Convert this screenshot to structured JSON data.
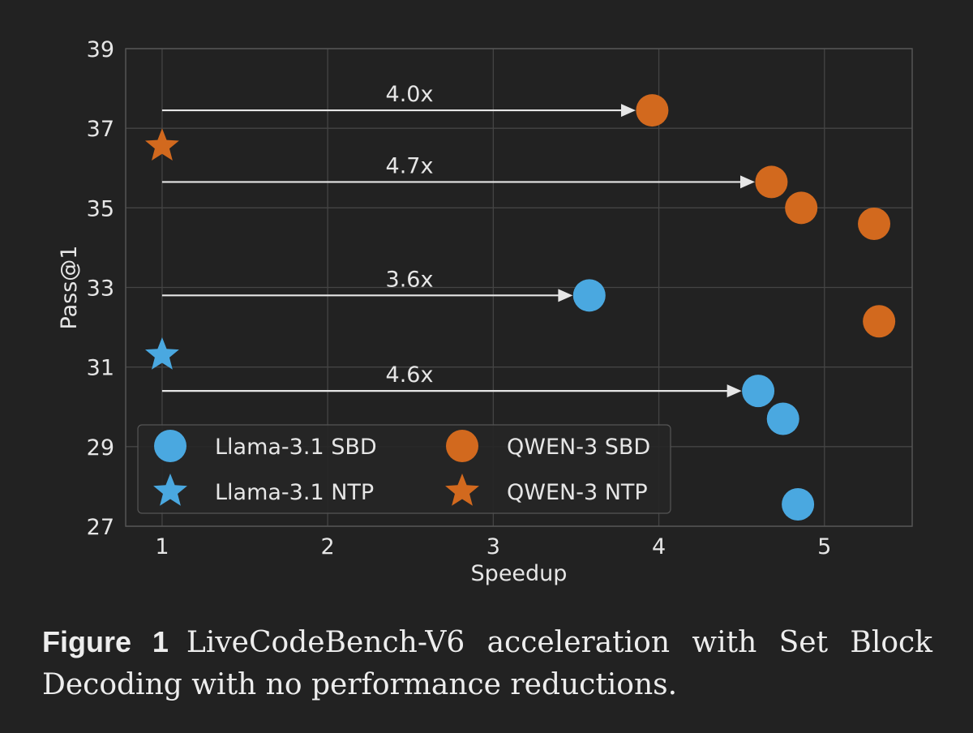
{
  "chart_data": {
    "type": "scatter",
    "xlabel": "Speedup",
    "ylabel": "Pass@1",
    "xlim": [
      0.78,
      5.53
    ],
    "ylim": [
      27,
      39
    ],
    "xticks": [
      1,
      2,
      3,
      4,
      5
    ],
    "yticks": [
      27,
      29,
      31,
      33,
      35,
      37,
      39
    ],
    "grid": true,
    "legend_position": "lower-left",
    "series": [
      {
        "name": "Llama-3.1 SBD",
        "marker": "circle",
        "color": "#4aa8e0",
        "points": [
          [
            3.58,
            32.8
          ],
          [
            4.6,
            30.4
          ],
          [
            4.75,
            29.7
          ],
          [
            4.84,
            27.55
          ]
        ]
      },
      {
        "name": "QWEN-3 SBD",
        "marker": "circle",
        "color": "#d2691e",
        "points": [
          [
            3.96,
            37.45
          ],
          [
            4.68,
            35.65
          ],
          [
            4.86,
            35.0
          ],
          [
            5.3,
            34.6
          ],
          [
            5.33,
            32.15
          ]
        ]
      },
      {
        "name": "Llama-3.1 NTP",
        "marker": "star",
        "color": "#4aa8e0",
        "points": [
          [
            1.0,
            31.3
          ]
        ]
      },
      {
        "name": "QWEN-3 NTP",
        "marker": "star",
        "color": "#d2691e",
        "points": [
          [
            1.0,
            36.55
          ]
        ]
      }
    ],
    "annotations": [
      {
        "label": "4.0x",
        "y": 37.45,
        "x_from": 1.0,
        "x_to": 3.86
      },
      {
        "label": "4.7x",
        "y": 35.65,
        "x_from": 1.0,
        "x_to": 4.58
      },
      {
        "label": "3.6x",
        "y": 32.8,
        "x_from": 1.0,
        "x_to": 3.48
      },
      {
        "label": "4.6x",
        "y": 30.4,
        "x_from": 1.0,
        "x_to": 4.5
      }
    ]
  },
  "caption": {
    "title": "Figure 1",
    "text": "LiveCodeBench-V6 acceleration with Set Block Decoding with no performance reductions."
  }
}
